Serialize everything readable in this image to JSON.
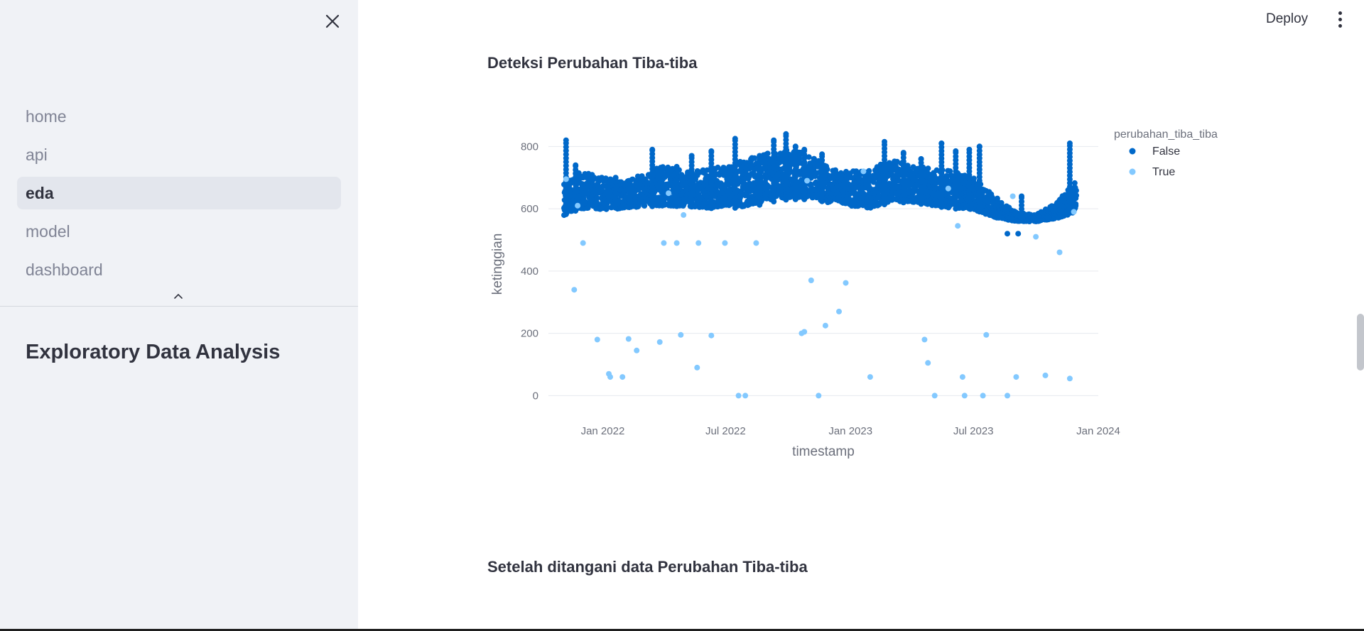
{
  "sidebar": {
    "nav_items": [
      {
        "label": "home",
        "active": false
      },
      {
        "label": "api",
        "active": false
      },
      {
        "label": "eda",
        "active": true
      },
      {
        "label": "model",
        "active": false
      },
      {
        "label": "dashboard",
        "active": false
      }
    ],
    "heading": "Exploratory Data Analysis"
  },
  "header": {
    "deploy_label": "Deploy"
  },
  "main": {
    "section1_title": "Deteksi Perubahan Tiba-tiba",
    "section2_title": "Setelah ditangani data Perubahan Tiba-tiba"
  },
  "colors": {
    "series_false": "#0068c9",
    "series_true": "#83c9ff",
    "sidebar_bg": "#f0f2f6",
    "gridline": "#e6e9ef"
  },
  "chart_data": {
    "type": "scatter",
    "title": "",
    "xlabel": "timestamp",
    "ylabel": "ketinggian",
    "x_ticks": [
      "Jan 2022",
      "Jul 2022",
      "Jan 2023",
      "Jul 2023",
      "Jan 2024"
    ],
    "y_ticks": [
      0,
      200,
      400,
      600,
      800
    ],
    "xlim": [
      "2021-10-13",
      "2024-01-01"
    ],
    "ylim": [
      -15,
      860
    ],
    "grid": true,
    "legend_title": "perubahan_tiba_tiba",
    "legend_placement": "top-right",
    "series": [
      {
        "name": "False",
        "color": "#0068c9",
        "x_range": [
          "2021-11-05",
          "2023-11-30"
        ],
        "band": [
          [
            "2021-11-05",
            560,
            690
          ],
          [
            "2021-12-01",
            580,
            720
          ],
          [
            "2022-01-01",
            580,
            700
          ],
          [
            "2022-02-01",
            585,
            690
          ],
          [
            "2022-03-01",
            590,
            710
          ],
          [
            "2022-04-01",
            585,
            740
          ],
          [
            "2022-05-01",
            590,
            720
          ],
          [
            "2022-06-01",
            580,
            730
          ],
          [
            "2022-07-01",
            585,
            740
          ],
          [
            "2022-08-01",
            580,
            760
          ],
          [
            "2022-09-01",
            600,
            780
          ],
          [
            "2022-10-01",
            610,
            790
          ],
          [
            "2022-11-01",
            610,
            780
          ],
          [
            "2022-12-01",
            600,
            730
          ],
          [
            "2023-01-01",
            590,
            720
          ],
          [
            "2023-02-01",
            580,
            730
          ],
          [
            "2023-03-01",
            600,
            760
          ],
          [
            "2023-04-01",
            600,
            740
          ],
          [
            "2023-05-01",
            590,
            730
          ],
          [
            "2023-06-01",
            580,
            720
          ],
          [
            "2023-07-01",
            580,
            700
          ],
          [
            "2023-08-01",
            560,
            640
          ],
          [
            "2023-09-01",
            555,
            590
          ],
          [
            "2023-10-01",
            555,
            580
          ],
          [
            "2023-11-01",
            560,
            620
          ],
          [
            "2023-11-30",
            570,
            700
          ]
        ],
        "spikes": [
          [
            "2021-11-08",
            820
          ],
          [
            "2021-11-22",
            740
          ],
          [
            "2022-01-20",
            700
          ],
          [
            "2022-02-10",
            690
          ],
          [
            "2022-03-15",
            790
          ],
          [
            "2022-04-20",
            735
          ],
          [
            "2022-05-12",
            770
          ],
          [
            "2022-06-10",
            785
          ],
          [
            "2022-07-15",
            825
          ],
          [
            "2022-08-20",
            770
          ],
          [
            "2022-09-10",
            820
          ],
          [
            "2022-09-28",
            840
          ],
          [
            "2022-10-12",
            800
          ],
          [
            "2022-10-25",
            790
          ],
          [
            "2022-11-20",
            775
          ],
          [
            "2023-02-20",
            815
          ],
          [
            "2023-03-20",
            780
          ],
          [
            "2023-04-15",
            760
          ],
          [
            "2023-05-15",
            810
          ],
          [
            "2023-06-05",
            785
          ],
          [
            "2023-06-25",
            790
          ],
          [
            "2023-07-10",
            800
          ],
          [
            "2023-09-10",
            640
          ],
          [
            "2023-11-20",
            810
          ],
          [
            "2023-08-20",
            520
          ],
          [
            "2023-09-05",
            520
          ]
        ]
      },
      {
        "name": "True",
        "color": "#83c9ff",
        "points": [
          [
            "2021-11-08",
            695
          ],
          [
            "2021-11-20",
            340
          ],
          [
            "2021-11-25",
            610
          ],
          [
            "2021-12-03",
            490
          ],
          [
            "2021-12-24",
            180
          ],
          [
            "2022-01-10",
            70
          ],
          [
            "2022-01-12",
            60
          ],
          [
            "2022-01-30",
            60
          ],
          [
            "2022-02-08",
            182
          ],
          [
            "2022-02-20",
            145
          ],
          [
            "2022-03-26",
            172
          ],
          [
            "2022-04-01",
            490
          ],
          [
            "2022-04-08",
            650
          ],
          [
            "2022-04-20",
            490
          ],
          [
            "2022-04-26",
            195
          ],
          [
            "2022-04-30",
            580
          ],
          [
            "2022-05-20",
            90
          ],
          [
            "2022-05-22",
            490
          ],
          [
            "2022-06-10",
            193
          ],
          [
            "2022-06-30",
            490
          ],
          [
            "2022-07-20",
            0
          ],
          [
            "2022-07-30",
            0
          ],
          [
            "2022-08-15",
            490
          ],
          [
            "2022-10-21",
            200
          ],
          [
            "2022-10-25",
            205
          ],
          [
            "2022-10-29",
            690
          ],
          [
            "2022-11-04",
            370
          ],
          [
            "2022-11-15",
            0
          ],
          [
            "2022-11-25",
            225
          ],
          [
            "2022-12-15",
            270
          ],
          [
            "2022-12-25",
            362
          ],
          [
            "2023-01-20",
            720
          ],
          [
            "2023-01-30",
            60
          ],
          [
            "2023-04-20",
            180
          ],
          [
            "2023-04-25",
            105
          ],
          [
            "2023-05-05",
            0
          ],
          [
            "2023-05-25",
            665
          ],
          [
            "2023-06-08",
            545
          ],
          [
            "2023-06-15",
            60
          ],
          [
            "2023-06-18",
            0
          ],
          [
            "2023-07-15",
            0
          ],
          [
            "2023-07-20",
            195
          ],
          [
            "2023-08-20",
            0
          ],
          [
            "2023-08-28",
            640
          ],
          [
            "2023-09-02",
            60
          ],
          [
            "2023-10-01",
            510
          ],
          [
            "2023-10-15",
            65
          ],
          [
            "2023-11-05",
            460
          ],
          [
            "2023-11-20",
            55
          ],
          [
            "2023-11-26",
            590
          ]
        ]
      }
    ]
  }
}
